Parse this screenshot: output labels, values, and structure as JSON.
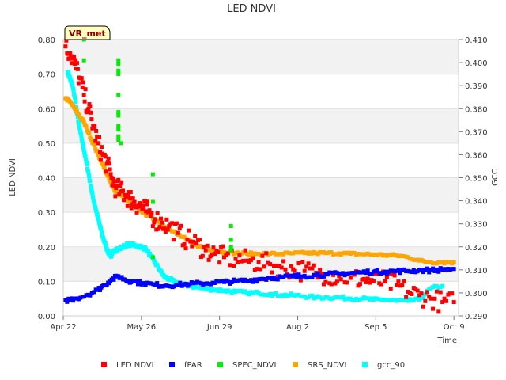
{
  "chart_data": {
    "type": "scatter",
    "title": "LED NDVI",
    "badge": "VR_met",
    "xlabel": "Time",
    "ylabel_left": "LED NDVI",
    "ylabel_right": "GCC",
    "x_range_days": [
      0,
      172
    ],
    "ylim_left": [
      0,
      0.8
    ],
    "ylim_right": [
      0.29,
      0.41
    ],
    "x_ticks": [
      {
        "label": "Apr 22",
        "day": 0
      },
      {
        "label": "May 26",
        "day": 34
      },
      {
        "label": "Jun 29",
        "day": 68
      },
      {
        "label": "Aug 2",
        "day": 102
      },
      {
        "label": "Sep 5",
        "day": 136
      },
      {
        "label": "Oct 9",
        "day": 170
      }
    ],
    "y_ticks_left": [
      "0.00",
      "0.10",
      "0.20",
      "0.30",
      "0.40",
      "0.50",
      "0.60",
      "0.70",
      "0.80"
    ],
    "y_ticks_right": [
      "0.290",
      "0.300",
      "0.310",
      "0.320",
      "0.330",
      "0.340",
      "0.350",
      "0.360",
      "0.370",
      "0.380",
      "0.390",
      "0.400",
      "0.410"
    ],
    "grid": true,
    "legend_position": "bottom",
    "series": [
      {
        "name": "LED NDVI",
        "color": "#ff0000",
        "axis": "left",
        "x": [
          1,
          3,
          5,
          7,
          9,
          11,
          13,
          15,
          17,
          19,
          21,
          23,
          25,
          27,
          29,
          31,
          33,
          35,
          37,
          40,
          43,
          46,
          50,
          54,
          58,
          62,
          66,
          70,
          75,
          80,
          85,
          90,
          95,
          100,
          105,
          110,
          115,
          120,
          125,
          130,
          135,
          140,
          145,
          150,
          155,
          160,
          165,
          170
        ],
        "y": [
          0.78,
          0.76,
          0.73,
          0.69,
          0.64,
          0.6,
          0.55,
          0.5,
          0.47,
          0.44,
          0.4,
          0.37,
          0.36,
          0.35,
          0.34,
          0.33,
          0.32,
          0.31,
          0.3,
          0.28,
          0.27,
          0.26,
          0.24,
          0.22,
          0.21,
          0.19,
          0.18,
          0.17,
          0.165,
          0.16,
          0.155,
          0.15,
          0.14,
          0.135,
          0.13,
          0.125,
          0.12,
          0.115,
          0.11,
          0.105,
          0.1,
          0.1,
          0.09,
          0.07,
          0.06,
          0.05,
          0.04,
          0.04
        ],
        "spread": 0.03
      },
      {
        "name": "fPAR",
        "color": "#0000ff",
        "axis": "left",
        "x": [
          1,
          5,
          10,
          15,
          18,
          21,
          24,
          27,
          30,
          35,
          40,
          45,
          50,
          55,
          60,
          65,
          70,
          75,
          80,
          85,
          90,
          95,
          100,
          105,
          110,
          115,
          120,
          125,
          130,
          135,
          140,
          145,
          150,
          155,
          160,
          165,
          170
        ],
        "y": [
          0.045,
          0.05,
          0.06,
          0.075,
          0.09,
          0.105,
          0.115,
          0.105,
          0.1,
          0.095,
          0.09,
          0.088,
          0.09,
          0.092,
          0.094,
          0.096,
          0.098,
          0.1,
          0.102,
          0.106,
          0.11,
          0.112,
          0.114,
          0.116,
          0.118,
          0.12,
          0.122,
          0.124,
          0.126,
          0.128,
          0.128,
          0.13,
          0.13,
          0.132,
          0.132,
          0.134,
          0.136
        ],
        "spread": 0.006
      },
      {
        "name": "SPEC_NDVI",
        "color": "#00ee00",
        "axis": "left",
        "x": [
          9,
          9,
          24,
          24,
          24,
          24,
          24,
          24,
          24,
          24,
          24,
          24,
          24,
          25,
          39,
          39,
          39,
          73,
          73,
          73,
          73
        ],
        "y": [
          0.8,
          0.74,
          0.74,
          0.73,
          0.71,
          0.7,
          0.64,
          0.59,
          0.58,
          0.55,
          0.54,
          0.52,
          0.51,
          0.5,
          0.41,
          0.33,
          0.17,
          0.26,
          0.22,
          0.2,
          0.19
        ],
        "spread": 0
      },
      {
        "name": "SRS_NDVI",
        "color": "#ffa500",
        "axis": "left",
        "x": [
          1,
          3,
          5,
          7,
          9,
          11,
          13,
          15,
          17,
          19,
          21,
          23,
          25,
          27,
          29,
          31,
          33,
          35,
          37,
          40,
          43,
          46,
          50,
          54,
          58,
          62,
          66,
          70,
          75,
          80,
          85,
          90,
          95,
          100,
          105,
          110,
          115,
          120,
          125,
          130,
          135,
          140,
          145,
          150,
          155,
          160,
          165,
          170
        ],
        "y": [
          0.63,
          0.62,
          0.6,
          0.58,
          0.56,
          0.53,
          0.5,
          0.47,
          0.44,
          0.41,
          0.38,
          0.36,
          0.35,
          0.34,
          0.33,
          0.32,
          0.31,
          0.3,
          0.29,
          0.28,
          0.265,
          0.25,
          0.235,
          0.22,
          0.205,
          0.195,
          0.19,
          0.185,
          0.182,
          0.18,
          0.18,
          0.18,
          0.18,
          0.181,
          0.182,
          0.182,
          0.182,
          0.181,
          0.18,
          0.179,
          0.178,
          0.176,
          0.175,
          0.17,
          0.16,
          0.155,
          0.155,
          0.155
        ],
        "spread": 0.004
      },
      {
        "name": "gcc_90",
        "color": "#00ffff",
        "axis": "right",
        "x": [
          2,
          3,
          4,
          5,
          6,
          7,
          8,
          9,
          10,
          11,
          12,
          13,
          14,
          15,
          16,
          17,
          18,
          19,
          20,
          21,
          22,
          23,
          24,
          26,
          28,
          30,
          32,
          34,
          36,
          38,
          40,
          42,
          44,
          46,
          48,
          50,
          55,
          60,
          65,
          70,
          75,
          80,
          85,
          90,
          95,
          100,
          105,
          110,
          115,
          120,
          125,
          130,
          135,
          140,
          145,
          150,
          155,
          160,
          165
        ],
        "y": [
          0.396,
          0.393,
          0.39,
          0.385,
          0.378,
          0.372,
          0.367,
          0.362,
          0.357,
          0.352,
          0.346,
          0.341,
          0.337,
          0.333,
          0.329,
          0.325,
          0.322,
          0.319,
          0.317,
          0.316,
          0.318,
          0.319,
          0.319,
          0.32,
          0.321,
          0.321,
          0.3205,
          0.32,
          0.319,
          0.316,
          0.313,
          0.31,
          0.307,
          0.306,
          0.305,
          0.304,
          0.303,
          0.302,
          0.3015,
          0.301,
          0.3005,
          0.3,
          0.3,
          0.2995,
          0.299,
          0.299,
          0.2985,
          0.298,
          0.298,
          0.298,
          0.2975,
          0.2975,
          0.297,
          0.297,
          0.2965,
          0.2965,
          0.297,
          0.302,
          0.303
        ],
        "spread": 0.0007
      }
    ]
  }
}
